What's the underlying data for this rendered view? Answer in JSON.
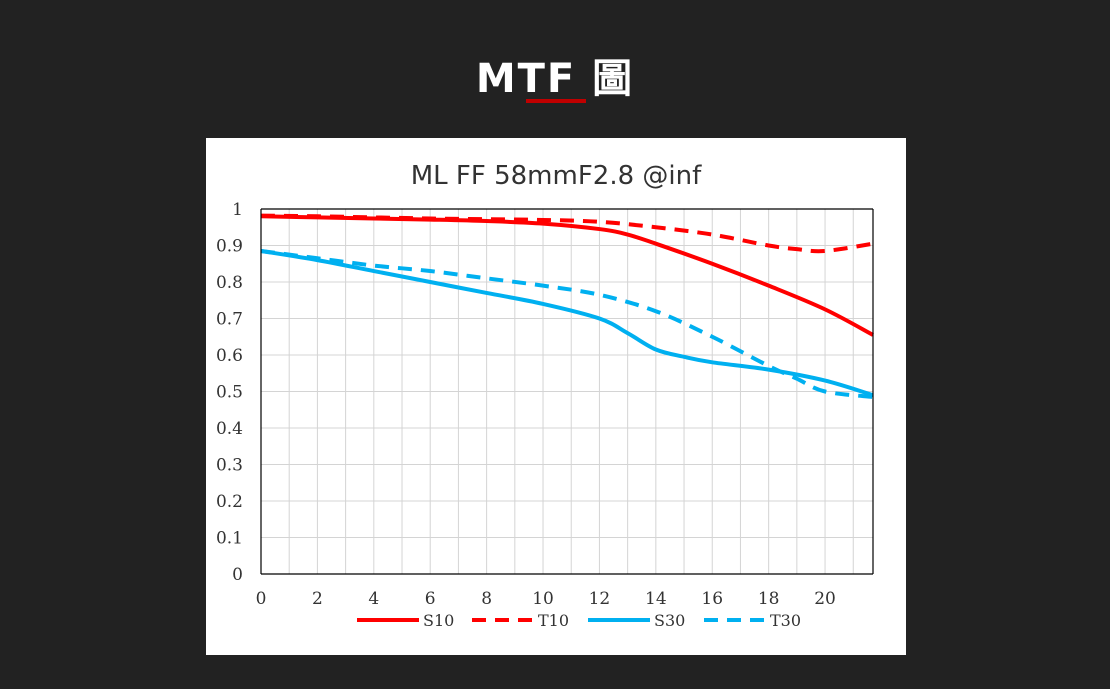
{
  "header": {
    "title": "MTF 圖",
    "accent_color": "#c00000"
  },
  "chart_data": {
    "type": "line",
    "title": "ML FF 58mmF2.8 @inf",
    "xlabel": "",
    "ylabel": "",
    "xlim": [
      0,
      21.7
    ],
    "ylim": [
      0,
      1
    ],
    "x_ticks": [
      "0",
      "2",
      "4",
      "6",
      "8",
      "10",
      "12",
      "14",
      "16",
      "18",
      "20"
    ],
    "y_ticks": [
      "0",
      "0.1",
      "0.2",
      "0.3",
      "0.4",
      "0.5",
      "0.6",
      "0.7",
      "0.8",
      "0.9",
      "1"
    ],
    "grid": true,
    "legend_position": "bottom",
    "series": [
      {
        "name": "S10",
        "color": "#ff0000",
        "style": "solid",
        "x": [
          0,
          2,
          4,
          6,
          8,
          10,
          12,
          13,
          14,
          16,
          18,
          20,
          21.7
        ],
        "y": [
          0.98,
          0.977,
          0.974,
          0.971,
          0.967,
          0.96,
          0.945,
          0.93,
          0.905,
          0.85,
          0.79,
          0.725,
          0.655
        ]
      },
      {
        "name": "T10",
        "color": "#ff0000",
        "style": "dashed",
        "x": [
          0,
          2,
          4,
          6,
          8,
          10,
          12,
          14,
          16,
          18,
          19,
          20,
          21.7
        ],
        "y": [
          0.982,
          0.98,
          0.977,
          0.974,
          0.972,
          0.97,
          0.965,
          0.95,
          0.93,
          0.9,
          0.89,
          0.885,
          0.905
        ]
      },
      {
        "name": "S30",
        "color": "#00b0f0",
        "style": "solid",
        "x": [
          0,
          2,
          4,
          6,
          8,
          10,
          12,
          13,
          14,
          15,
          16,
          18,
          20,
          21.7
        ],
        "y": [
          0.885,
          0.86,
          0.83,
          0.8,
          0.77,
          0.74,
          0.7,
          0.66,
          0.615,
          0.595,
          0.58,
          0.56,
          0.53,
          0.49
        ]
      },
      {
        "name": "T30",
        "color": "#00b0f0",
        "style": "dashed",
        "x": [
          0,
          2,
          4,
          6,
          8,
          10,
          12,
          14,
          16,
          18,
          19,
          20,
          21.7
        ],
        "y": [
          0.885,
          0.865,
          0.845,
          0.83,
          0.81,
          0.79,
          0.765,
          0.72,
          0.65,
          0.57,
          0.535,
          0.5,
          0.485
        ]
      }
    ]
  }
}
